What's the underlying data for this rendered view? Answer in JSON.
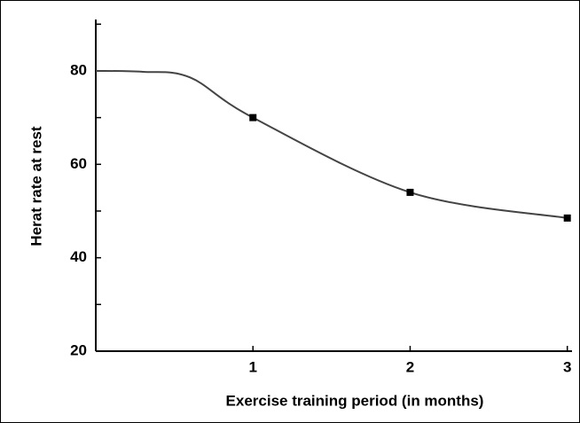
{
  "chart_data": {
    "type": "line",
    "xlabel": "Exercise training period (in months)",
    "ylabel": "Herat rate at rest",
    "xlim": [
      0,
      3.03
    ],
    "xticks": [
      1,
      2,
      3
    ],
    "ylim": [
      20,
      91
    ],
    "yticks": [
      20,
      40,
      60,
      80
    ],
    "yminor_ticks": [
      30,
      50,
      70,
      90
    ],
    "color": "#444444",
    "series": [
      {
        "style": "line",
        "x": [
          0,
          0.3,
          0.6,
          1,
          2,
          3
        ],
        "values": [
          80,
          79.8,
          78.6,
          70,
          54,
          48.5
        ]
      },
      {
        "style": "markers",
        "x": [
          1,
          2,
          3
        ],
        "values": [
          70,
          54,
          48.5
        ]
      }
    ]
  }
}
